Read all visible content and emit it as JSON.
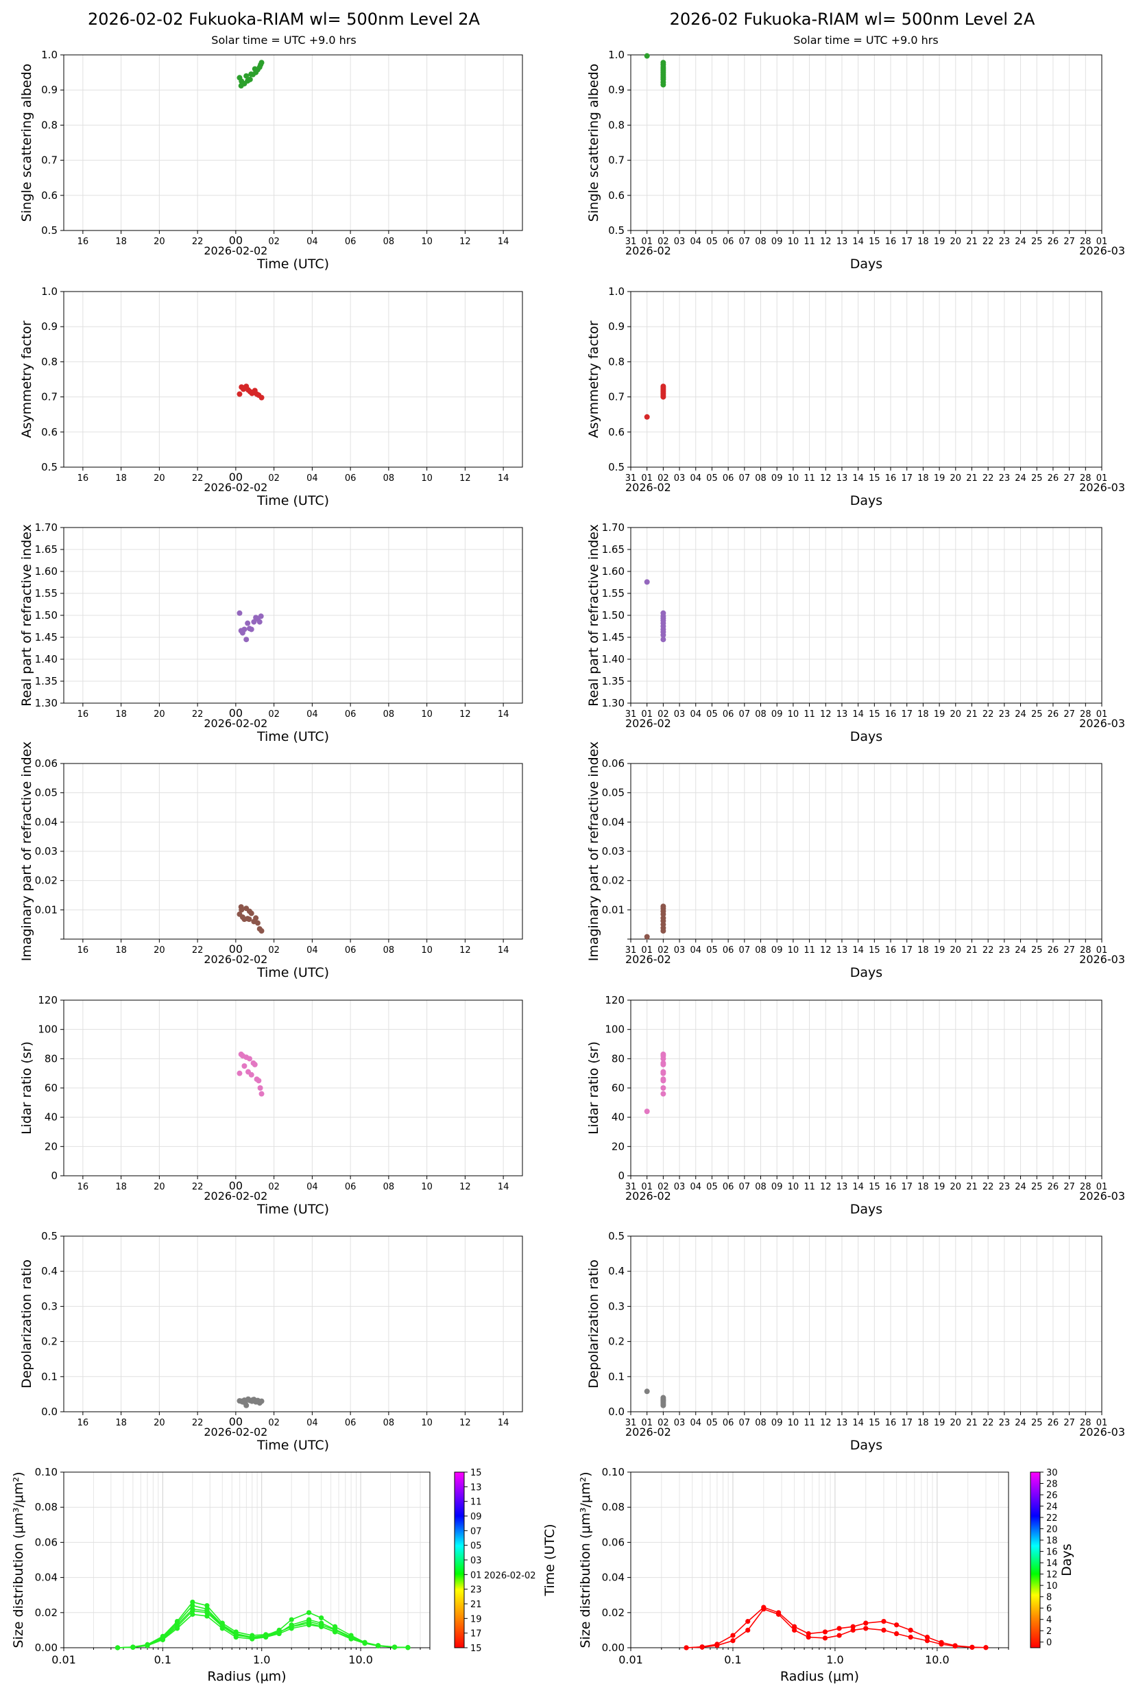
{
  "header": {
    "left_title": "2026-02-02  Fukuoka-RIAM  wl= 500nm  Level 2A",
    "left_subtitle": "Solar time = UTC +9.0 hrs",
    "right_title": "2026-02  Fukuoka-RIAM  wl= 500nm  Level 2A",
    "right_subtitle": "Solar time = UTC +9.0 hrs"
  },
  "axes": {
    "daily_xlabel": "Time (UTC)",
    "daily_date_label": "2026-02-02",
    "daily_ticks": [
      "16",
      "18",
      "20",
      "22",
      "00",
      "02",
      "04",
      "06",
      "08",
      "10",
      "12",
      "14"
    ],
    "monthly_xlabel": "Days",
    "monthly_ticks": [
      "31",
      "01",
      "02",
      "03",
      "04",
      "05",
      "06",
      "07",
      "08",
      "09",
      "10",
      "11",
      "12",
      "13",
      "14",
      "15",
      "16",
      "17",
      "18",
      "19",
      "20",
      "21",
      "22",
      "23",
      "24",
      "25",
      "26",
      "27",
      "28",
      "01"
    ],
    "monthly_start_label": "2026-02",
    "monthly_end_label": "2026-03",
    "size_xlabel": "Radius (μm)",
    "size_ylabel": "Size distribution (μm³/μm²)",
    "size_xticks": [
      "0.01",
      "0.1",
      "1.0",
      "10.0"
    ],
    "size_yticks": [
      "0.00",
      "0.02",
      "0.04",
      "0.06",
      "0.08",
      "0.10"
    ]
  },
  "colorbars": {
    "daily_ticks": [
      "15",
      "17",
      "19",
      "21",
      "23",
      "01",
      "03",
      "05",
      "07",
      "09",
      "11",
      "13",
      "15"
    ],
    "daily_date": "2026-02-02",
    "daily_label": "Time (UTC)",
    "monthly_ticks": [
      "0",
      "2",
      "4",
      "6",
      "8",
      "10",
      "12",
      "14",
      "16",
      "18",
      "20",
      "22",
      "24",
      "26",
      "28",
      "30"
    ],
    "monthly_label": "Days"
  },
  "chart_data": [
    {
      "type": "scatter",
      "panel": "daily",
      "ylabel": "Single scattering albedo",
      "ylim": [
        0.5,
        1.0
      ],
      "yticks": [
        "0.5",
        "0.6",
        "0.7",
        "0.8",
        "0.9",
        "1.0"
      ],
      "color": "#2ca02c",
      "x": [
        0.2,
        0.28,
        0.45,
        0.62,
        0.75,
        0.9,
        1.05,
        1.15,
        1.25,
        1.35,
        0.3,
        0.55,
        0.8,
        1.0,
        1.3
      ],
      "y": [
        0.935,
        0.912,
        0.918,
        0.926,
        0.93,
        0.944,
        0.95,
        0.958,
        0.965,
        0.978,
        0.925,
        0.94,
        0.945,
        0.96,
        0.972
      ]
    },
    {
      "type": "scatter",
      "panel": "monthly",
      "ylabel": "Single scattering albedo",
      "ylim": [
        0.5,
        1.0
      ],
      "yticks": [
        "0.5",
        "0.6",
        "0.7",
        "0.8",
        "0.9",
        "1.0"
      ],
      "color": "#2ca02c",
      "x": [
        1.0,
        2.0,
        2.0,
        2.0,
        2.0,
        2.0,
        2.0,
        2.0,
        2.0,
        2.0,
        2.0,
        2.0,
        2.0
      ],
      "y": [
        0.997,
        0.915,
        0.922,
        0.93,
        0.935,
        0.94,
        0.945,
        0.95,
        0.955,
        0.96,
        0.965,
        0.972,
        0.978
      ]
    },
    {
      "type": "scatter",
      "panel": "daily",
      "ylabel": "Asymmetry factor",
      "ylim": [
        0.5,
        1.0
      ],
      "yticks": [
        "0.5",
        "0.6",
        "0.7",
        "0.8",
        "0.9",
        "1.0"
      ],
      "color": "#d62728",
      "x": [
        0.2,
        0.3,
        0.45,
        0.55,
        0.65,
        0.75,
        0.9,
        1.0,
        1.1,
        1.2,
        1.35,
        0.4,
        0.85
      ],
      "y": [
        0.708,
        0.728,
        0.726,
        0.73,
        0.72,
        0.715,
        0.712,
        0.718,
        0.708,
        0.705,
        0.698,
        0.722,
        0.71
      ]
    },
    {
      "type": "scatter",
      "panel": "monthly",
      "ylabel": "Asymmetry factor",
      "ylim": [
        0.5,
        1.0
      ],
      "yticks": [
        "0.5",
        "0.6",
        "0.7",
        "0.8",
        "0.9",
        "1.0"
      ],
      "color": "#d62728",
      "x": [
        1.0,
        2.0,
        2.0,
        2.0,
        2.0,
        2.0,
        2.0,
        2.0
      ],
      "y": [
        0.643,
        0.7,
        0.705,
        0.71,
        0.715,
        0.72,
        0.725,
        0.73
      ]
    },
    {
      "type": "scatter",
      "panel": "daily",
      "ylabel": "Real part of refractive index",
      "ylim": [
        1.3,
        1.7
      ],
      "yticks": [
        "1.30",
        "1.35",
        "1.40",
        "1.45",
        "1.50",
        "1.55",
        "1.60",
        "1.65",
        "1.70"
      ],
      "color": "#9467bd",
      "x": [
        0.2,
        0.28,
        0.36,
        0.45,
        0.55,
        0.62,
        0.72,
        0.82,
        0.95,
        1.05,
        1.15,
        1.25,
        1.32
      ],
      "y": [
        1.505,
        1.465,
        1.46,
        1.468,
        1.445,
        1.482,
        1.47,
        1.468,
        1.485,
        1.495,
        1.492,
        1.485,
        1.498
      ]
    },
    {
      "type": "scatter",
      "panel": "monthly",
      "ylabel": "Real part of refractive index",
      "ylim": [
        1.3,
        1.7
      ],
      "yticks": [
        "1.30",
        "1.35",
        "1.40",
        "1.45",
        "1.50",
        "1.55",
        "1.60",
        "1.65",
        "1.70"
      ],
      "color": "#9467bd",
      "x": [
        1.0,
        2.0,
        2.0,
        2.0,
        2.0,
        2.0,
        2.0,
        2.0,
        2.0,
        2.0,
        2.0
      ],
      "y": [
        1.576,
        1.445,
        1.455,
        1.462,
        1.468,
        1.475,
        1.482,
        1.488,
        1.493,
        1.498,
        1.505
      ]
    },
    {
      "type": "scatter",
      "panel": "daily",
      "ylabel": "Imaginary part of refractive index",
      "ylim": [
        0.0,
        0.06
      ],
      "yticks": [
        "",
        "0.01",
        "0.02",
        "0.03",
        "0.04",
        "0.05",
        "0.06"
      ],
      "color": "#8c564b",
      "x": [
        0.2,
        0.28,
        0.36,
        0.45,
        0.55,
        0.62,
        0.72,
        0.82,
        0.95,
        1.05,
        1.15,
        1.25,
        1.35,
        0.3,
        0.7
      ],
      "y": [
        0.0085,
        0.011,
        0.0075,
        0.0068,
        0.0105,
        0.007,
        0.0095,
        0.0088,
        0.006,
        0.0072,
        0.0055,
        0.0035,
        0.0028,
        0.01,
        0.0068
      ]
    },
    {
      "type": "scatter",
      "panel": "monthly",
      "ylabel": "Imaginary part of refractive index",
      "ylim": [
        0.0,
        0.06
      ],
      "yticks": [
        "",
        "0.01",
        "0.02",
        "0.03",
        "0.04",
        "0.05",
        "0.06"
      ],
      "color": "#8c564b",
      "x": [
        1.0,
        2.0,
        2.0,
        2.0,
        2.0,
        2.0,
        2.0,
        2.0,
        2.0,
        2.0
      ],
      "y": [
        0.0008,
        0.0028,
        0.0038,
        0.005,
        0.0062,
        0.0072,
        0.0085,
        0.0095,
        0.0105,
        0.0112
      ]
    },
    {
      "type": "scatter",
      "panel": "daily",
      "ylabel": "Lidar ratio (sr)",
      "ylim": [
        0,
        120
      ],
      "yticks": [
        "0",
        "20",
        "40",
        "60",
        "80",
        "100",
        "120"
      ],
      "color": "#e377c2",
      "x": [
        0.2,
        0.28,
        0.36,
        0.45,
        0.55,
        0.65,
        0.72,
        0.82,
        0.92,
        1.0,
        1.1,
        1.2,
        1.28,
        1.35
      ],
      "y": [
        70,
        83,
        82,
        75,
        81,
        71,
        80,
        69,
        77,
        76,
        66,
        65,
        60,
        56
      ]
    },
    {
      "type": "scatter",
      "panel": "monthly",
      "ylabel": "Lidar ratio (sr)",
      "ylim": [
        0,
        120
      ],
      "yticks": [
        "0",
        "20",
        "40",
        "60",
        "80",
        "100",
        "120"
      ],
      "color": "#e377c2",
      "x": [
        1.0,
        2.0,
        2.0,
        2.0,
        2.0,
        2.0,
        2.0,
        2.0,
        2.0,
        2.0,
        2.0,
        2.0
      ],
      "y": [
        44,
        56,
        60,
        65,
        66,
        70,
        71,
        76,
        77,
        80,
        82,
        83
      ]
    },
    {
      "type": "scatter",
      "panel": "daily",
      "ylabel": "Depolarization ratio",
      "ylim": [
        0,
        0.5
      ],
      "yticks": [
        "0.0",
        "0.1",
        "0.2",
        "0.3",
        "0.4",
        "0.5"
      ],
      "color": "#7f7f7f",
      "x": [
        0.2,
        0.28,
        0.36,
        0.45,
        0.55,
        0.65,
        0.75,
        0.85,
        0.95,
        1.05,
        1.15,
        1.25,
        1.35,
        0.5,
        0.9
      ],
      "y": [
        0.031,
        0.03,
        0.028,
        0.033,
        0.018,
        0.036,
        0.032,
        0.03,
        0.035,
        0.028,
        0.032,
        0.025,
        0.03,
        0.025,
        0.034
      ]
    },
    {
      "type": "scatter",
      "panel": "monthly",
      "ylabel": "Depolarization ratio",
      "ylim": [
        0,
        0.5
      ],
      "yticks": [
        "0.0",
        "0.1",
        "0.2",
        "0.3",
        "0.4",
        "0.5"
      ],
      "color": "#7f7f7f",
      "x": [
        1.0,
        2.0,
        2.0,
        2.0,
        2.0,
        2.0,
        2.0,
        2.0
      ],
      "y": [
        0.058,
        0.018,
        0.022,
        0.026,
        0.03,
        0.033,
        0.036,
        0.04
      ]
    },
    {
      "type": "line",
      "panel": "size-daily",
      "xscale": "log",
      "xlim": [
        0.01,
        50
      ],
      "ylim": [
        0,
        0.1
      ],
      "color": "#22ee22",
      "x": [
        0.035,
        0.05,
        0.07,
        0.1,
        0.14,
        0.2,
        0.28,
        0.4,
        0.55,
        0.8,
        1.1,
        1.5,
        2.0,
        3.0,
        4.0,
        5.5,
        8.0,
        11.0,
        15.0,
        22.0,
        30.0
      ],
      "series": [
        {
          "values": [
            0.0,
            0.0003,
            0.0015,
            0.006,
            0.014,
            0.024,
            0.022,
            0.013,
            0.008,
            0.006,
            0.007,
            0.009,
            0.012,
            0.015,
            0.013,
            0.01,
            0.006,
            0.003,
            0.0012,
            0.0003,
            0.0001
          ]
        },
        {
          "values": [
            0.0,
            0.0003,
            0.0013,
            0.005,
            0.012,
            0.021,
            0.02,
            0.012,
            0.007,
            0.006,
            0.007,
            0.01,
            0.016,
            0.02,
            0.017,
            0.012,
            0.007,
            0.003,
            0.0013,
            0.0004,
            0.0001
          ]
        },
        {
          "values": [
            0.0,
            0.0002,
            0.0012,
            0.0045,
            0.011,
            0.019,
            0.018,
            0.011,
            0.006,
            0.005,
            0.006,
            0.008,
            0.011,
            0.013,
            0.012,
            0.009,
            0.005,
            0.0025,
            0.001,
            0.0003,
            0.0001
          ]
        },
        {
          "values": [
            0.0,
            0.0004,
            0.0018,
            0.0065,
            0.015,
            0.026,
            0.024,
            0.014,
            0.009,
            0.007,
            0.0075,
            0.009,
            0.012,
            0.014,
            0.012,
            0.009,
            0.0055,
            0.0028,
            0.0011,
            0.0003,
            0.0001
          ]
        },
        {
          "values": [
            0.0,
            0.0003,
            0.0014,
            0.0055,
            0.013,
            0.022,
            0.021,
            0.0125,
            0.0075,
            0.0055,
            0.0065,
            0.0085,
            0.013,
            0.016,
            0.014,
            0.0105,
            0.0062,
            0.0029,
            0.0012,
            0.0003,
            0.0001
          ]
        }
      ]
    },
    {
      "type": "line",
      "panel": "size-monthly",
      "xscale": "log",
      "xlim": [
        0.01,
        50
      ],
      "ylim": [
        0,
        0.1
      ],
      "color": "#ff0000",
      "x": [
        0.035,
        0.05,
        0.07,
        0.1,
        0.14,
        0.2,
        0.28,
        0.4,
        0.55,
        0.8,
        1.1,
        1.5,
        2.0,
        3.0,
        4.0,
        5.5,
        8.0,
        11.0,
        15.0,
        22.0,
        30.0
      ],
      "series": [
        {
          "values": [
            0.0,
            0.0005,
            0.002,
            0.007,
            0.015,
            0.023,
            0.02,
            0.012,
            0.008,
            0.009,
            0.011,
            0.012,
            0.014,
            0.015,
            0.013,
            0.01,
            0.006,
            0.003,
            0.0012,
            0.0003,
            0.0001
          ]
        },
        {
          "values": [
            0.0,
            0.0003,
            0.0013,
            0.004,
            0.01,
            0.022,
            0.019,
            0.01,
            0.006,
            0.0055,
            0.007,
            0.01,
            0.011,
            0.01,
            0.008,
            0.006,
            0.004,
            0.002,
            0.0009,
            0.0002,
            0.0001
          ]
        }
      ]
    }
  ]
}
